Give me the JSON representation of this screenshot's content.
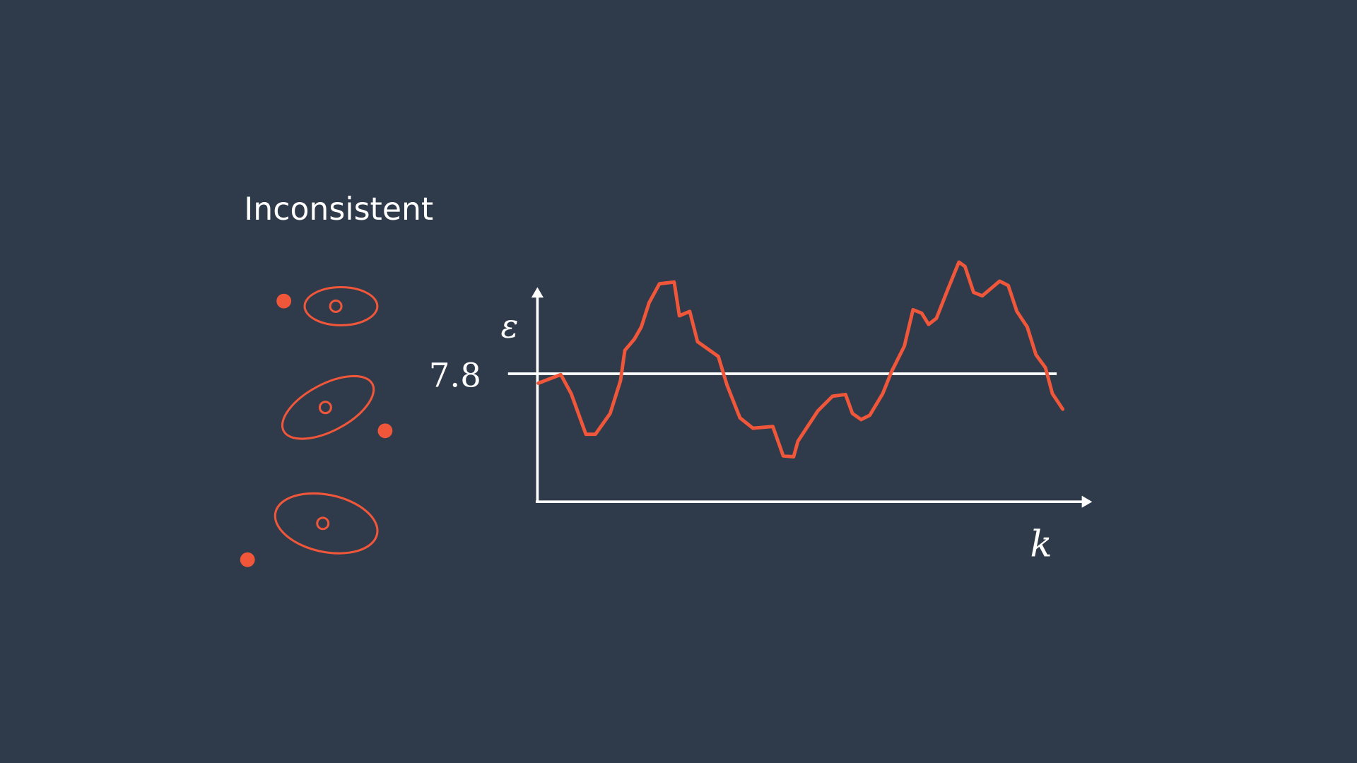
{
  "slide": {
    "title": "Inconsistent"
  },
  "plot": {
    "y_axis_label": "ε",
    "x_axis_label": "k",
    "threshold_label": "7.8"
  }
}
